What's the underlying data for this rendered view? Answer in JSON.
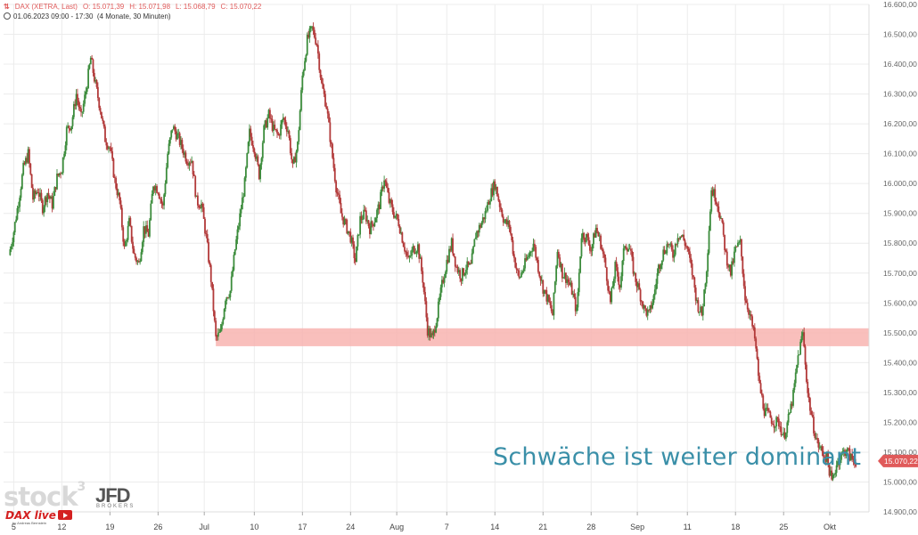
{
  "header": {
    "symbol": "DAX (XETRA, Last)",
    "open": "O: 15.071,39",
    "high": "H: 15.071,98",
    "low": "L: 15.068,79",
    "close": "C: 15.070,22",
    "range": "01.06.2023 09:00 - 17:30",
    "period": "(4 Monate, 30 Minuten)"
  },
  "annotation": "Schwäche ist weiter dominant",
  "branding": {
    "stock3": "stock",
    "stock3_sup": "3",
    "jfd": "JFD",
    "jfd_sub": "BROKERS",
    "daxlive": "DAX live",
    "by": "by Andreas Bernstein"
  },
  "colors": {
    "up": "#3c8c3c",
    "down": "#b23a3a",
    "zone": "#f8b4b0",
    "price_tag": "#e05a5a",
    "annotation": "#3a8fa8"
  },
  "chart_data": {
    "type": "candlestick",
    "ylim": [
      14900,
      16600
    ],
    "yticks": [
      16600,
      16500,
      16400,
      16300,
      16200,
      16100,
      16000,
      15900,
      15800,
      15700,
      15600,
      15500,
      15400,
      15300,
      15200,
      15100,
      15000,
      14900
    ],
    "ytick_labels": [
      "16.600,00",
      "16.500,00",
      "16.400,00",
      "16.300,00",
      "16.200,00",
      "16.100,00",
      "16.000,00",
      "15.900,00",
      "15.800,00",
      "15.700,00",
      "15.600,00",
      "15.500,00",
      "15.400,00",
      "15.300,00",
      "15.200,00",
      "15.100,00",
      "15.000,00",
      "14.900,00"
    ],
    "xticks": [
      {
        "label": "5",
        "x": 0.5
      },
      {
        "label": "12",
        "x": 5.5
      },
      {
        "label": "19",
        "x": 10.5
      },
      {
        "label": "26",
        "x": 15.5
      },
      {
        "label": "Jul",
        "x": 20.3
      },
      {
        "label": "10",
        "x": 25.5
      },
      {
        "label": "17",
        "x": 30.5
      },
      {
        "label": "24",
        "x": 35.5
      },
      {
        "label": "Aug",
        "x": 40.3
      },
      {
        "label": "7",
        "x": 45.5
      },
      {
        "label": "14",
        "x": 50.5
      },
      {
        "label": "21",
        "x": 55.5
      },
      {
        "label": "28",
        "x": 60.5
      },
      {
        "label": "Sep",
        "x": 65.3
      },
      {
        "label": "11",
        "x": 70.5
      },
      {
        "label": "18",
        "x": 75.5
      },
      {
        "label": "25",
        "x": 80.5
      },
      {
        "label": "Okt",
        "x": 85.3
      }
    ],
    "days": 89,
    "close_path": [
      [
        0,
        15760
      ],
      [
        0.5,
        15840
      ],
      [
        1,
        15940
      ],
      [
        1.5,
        16050
      ],
      [
        2,
        16100
      ],
      [
        2.5,
        15950
      ],
      [
        3,
        15980
      ],
      [
        3.5,
        15920
      ],
      [
        4,
        15970
      ],
      [
        4.5,
        15930
      ],
      [
        5,
        16020
      ],
      [
        5.5,
        16050
      ],
      [
        6,
        16180
      ],
      [
        6.5,
        16200
      ],
      [
        7,
        16300
      ],
      [
        7.5,
        16220
      ],
      [
        8,
        16310
      ],
      [
        8.5,
        16420
      ],
      [
        9,
        16330
      ],
      [
        9.5,
        16250
      ],
      [
        10,
        16150
      ],
      [
        10.5,
        16120
      ],
      [
        11,
        16010
      ],
      [
        11.5,
        15940
      ],
      [
        12,
        15780
      ],
      [
        12.5,
        15870
      ],
      [
        13,
        15760
      ],
      [
        13.5,
        15730
      ],
      [
        14,
        15850
      ],
      [
        14.5,
        15830
      ],
      [
        15,
        16000
      ],
      [
        15.5,
        15980
      ],
      [
        16,
        15920
      ],
      [
        16.5,
        16100
      ],
      [
        17,
        16190
      ],
      [
        17.5,
        16160
      ],
      [
        18,
        16120
      ],
      [
        18.5,
        16080
      ],
      [
        19,
        16080
      ],
      [
        19.5,
        15940
      ],
      [
        20,
        15930
      ],
      [
        20.5,
        15820
      ],
      [
        21,
        15680
      ],
      [
        21.5,
        15480
      ],
      [
        22,
        15500
      ],
      [
        22.5,
        15620
      ],
      [
        23,
        15640
      ],
      [
        23.5,
        15780
      ],
      [
        24,
        15890
      ],
      [
        24.5,
        16000
      ],
      [
        25,
        16170
      ],
      [
        25.5,
        16120
      ],
      [
        26,
        16030
      ],
      [
        26.5,
        16180
      ],
      [
        27,
        16230
      ],
      [
        27.5,
        16180
      ],
      [
        28,
        16160
      ],
      [
        28.5,
        16220
      ],
      [
        29,
        16180
      ],
      [
        29.5,
        16050
      ],
      [
        30,
        16130
      ],
      [
        30.5,
        16360
      ],
      [
        31,
        16480
      ],
      [
        31.5,
        16520
      ],
      [
        32,
        16470
      ],
      [
        32.5,
        16330
      ],
      [
        33,
        16260
      ],
      [
        33.5,
        16120
      ],
      [
        34,
        15990
      ],
      [
        34.5,
        15900
      ],
      [
        35,
        15860
      ],
      [
        35.5,
        15820
      ],
      [
        36,
        15740
      ],
      [
        36.5,
        15880
      ],
      [
        37,
        15900
      ],
      [
        37.5,
        15850
      ],
      [
        38,
        15880
      ],
      [
        38.5,
        15930
      ],
      [
        39,
        16020
      ],
      [
        39.5,
        15940
      ],
      [
        40,
        15900
      ],
      [
        40.5,
        15870
      ],
      [
        41,
        15800
      ],
      [
        41.5,
        15740
      ],
      [
        42,
        15780
      ],
      [
        42.5,
        15790
      ],
      [
        43,
        15680
      ],
      [
        43.5,
        15510
      ],
      [
        44,
        15480
      ],
      [
        44.5,
        15560
      ],
      [
        45,
        15660
      ],
      [
        45.5,
        15740
      ],
      [
        46,
        15800
      ],
      [
        46.5,
        15720
      ],
      [
        47,
        15690
      ],
      [
        47.5,
        15720
      ],
      [
        48,
        15720
      ],
      [
        48.5,
        15830
      ],
      [
        49,
        15860
      ],
      [
        49.5,
        15900
      ],
      [
        50,
        15960
      ],
      [
        50.5,
        16000
      ],
      [
        51,
        15930
      ],
      [
        51.5,
        15870
      ],
      [
        52,
        15860
      ],
      [
        52.5,
        15750
      ],
      [
        53,
        15680
      ],
      [
        53.5,
        15720
      ],
      [
        54,
        15760
      ],
      [
        54.5,
        15800
      ],
      [
        55,
        15720
      ],
      [
        55.5,
        15650
      ],
      [
        56,
        15610
      ],
      [
        56.5,
        15560
      ],
      [
        57,
        15780
      ],
      [
        57.5,
        15700
      ],
      [
        58,
        15680
      ],
      [
        58.5,
        15640
      ],
      [
        59,
        15570
      ],
      [
        59.5,
        15830
      ],
      [
        60,
        15820
      ],
      [
        60.5,
        15780
      ],
      [
        61,
        15850
      ],
      [
        61.5,
        15800
      ],
      [
        62,
        15720
      ],
      [
        62.5,
        15600
      ],
      [
        63,
        15720
      ],
      [
        63.5,
        15660
      ],
      [
        64,
        15800
      ],
      [
        64.5,
        15780
      ],
      [
        65,
        15690
      ],
      [
        65.5,
        15640
      ],
      [
        66,
        15580
      ],
      [
        66.5,
        15560
      ],
      [
        67,
        15620
      ],
      [
        67.5,
        15720
      ],
      [
        68,
        15770
      ],
      [
        68.5,
        15800
      ],
      [
        69,
        15760
      ],
      [
        69.5,
        15830
      ],
      [
        70,
        15820
      ],
      [
        70.5,
        15780
      ],
      [
        71,
        15700
      ],
      [
        71.5,
        15600
      ],
      [
        72,
        15560
      ],
      [
        72.5,
        15720
      ],
      [
        73,
        15980
      ],
      [
        73.5,
        15950
      ],
      [
        74,
        15880
      ],
      [
        74.5,
        15760
      ],
      [
        75,
        15700
      ],
      [
        75.5,
        15780
      ],
      [
        76,
        15800
      ],
      [
        76.5,
        15620
      ],
      [
        77,
        15560
      ],
      [
        77.5,
        15480
      ],
      [
        78,
        15320
      ],
      [
        78.5,
        15240
      ],
      [
        79,
        15220
      ],
      [
        79.5,
        15200
      ],
      [
        80,
        15200
      ],
      [
        80.5,
        15150
      ],
      [
        81,
        15210
      ],
      [
        81.5,
        15290
      ],
      [
        82,
        15420
      ],
      [
        82.5,
        15500
      ],
      [
        83,
        15300
      ],
      [
        83.5,
        15200
      ],
      [
        84,
        15130
      ],
      [
        84.5,
        15100
      ],
      [
        85,
        15080
      ],
      [
        85.5,
        15000
      ],
      [
        86,
        15060
      ],
      [
        86.5,
        15090
      ],
      [
        87,
        15110
      ],
      [
        87.5,
        15080
      ],
      [
        88,
        15070
      ]
    ],
    "zone": {
      "from_day": 21.5,
      "to_day": 89,
      "low": 15455,
      "high": 15515
    },
    "last_price": 15070.22,
    "last_price_label": "15.070,22"
  }
}
